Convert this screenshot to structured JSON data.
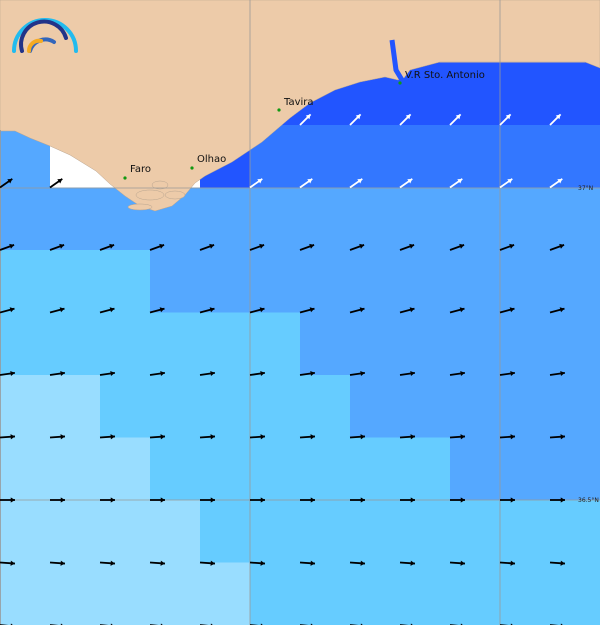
{
  "cities": [
    {
      "name": "Faro",
      "dot": [
        125,
        178
      ],
      "label": [
        130,
        172
      ]
    },
    {
      "name": "Olhao",
      "dot": [
        192,
        168
      ],
      "label": [
        197,
        162
      ]
    },
    {
      "name": "Tavira",
      "dot": [
        279,
        110
      ],
      "label": [
        284,
        105
      ]
    },
    {
      "name": "V.R Sto. Antonio",
      "dot": [
        400,
        83
      ],
      "label": [
        405,
        78
      ]
    }
  ],
  "latitude_labels": [
    "37°N",
    "36.5°N"
  ],
  "colors": {
    "land": "#edcba9",
    "coast_gap": "#ffffff",
    "levels": [
      "#2255ff",
      "#3377ff",
      "#55a8ff",
      "#66ccff",
      "#99ddff"
    ],
    "grid": "#999999",
    "city_dot": "#119911"
  },
  "cell_levels": [
    [
      -1,
      -1,
      -1,
      -1,
      -1,
      -1,
      -1,
      -1,
      -1,
      -1,
      -1,
      -1
    ],
    [
      -1,
      -1,
      -1,
      -1,
      -1,
      0,
      0,
      0,
      0,
      0,
      0,
      0
    ],
    [
      2,
      -2,
      -2,
      -2,
      0,
      1,
      1,
      1,
      1,
      1,
      1,
      1
    ],
    [
      2,
      2,
      2,
      2,
      2,
      2,
      2,
      2,
      2,
      2,
      2,
      2
    ],
    [
      3,
      3,
      3,
      2,
      2,
      2,
      2,
      2,
      2,
      2,
      2,
      2
    ],
    [
      3,
      3,
      3,
      3,
      3,
      3,
      2,
      2,
      2,
      2,
      2,
      2
    ],
    [
      4,
      4,
      3,
      3,
      3,
      3,
      3,
      2,
      2,
      2,
      2,
      2
    ],
    [
      4,
      4,
      4,
      3,
      3,
      3,
      3,
      3,
      3,
      2,
      2,
      2
    ],
    [
      4,
      4,
      4,
      4,
      3,
      3,
      3,
      3,
      3,
      3,
      3,
      3
    ],
    [
      4,
      4,
      4,
      4,
      4,
      3,
      3,
      3,
      3,
      3,
      3,
      3
    ]
  ],
  "arrow_rows": [
    {
      "color": "white",
      "angle_deg": 45,
      "from_col": 6
    },
    {
      "color": "white",
      "angle_deg": 35,
      "from_col": 5,
      "black_cols": [
        0,
        1
      ]
    },
    {
      "color": "black",
      "angle_deg": 20,
      "from_col": 0
    },
    {
      "color": "black",
      "angle_deg": 15,
      "from_col": 0
    },
    {
      "color": "black",
      "angle_deg": 8,
      "from_col": 0
    },
    {
      "color": "black",
      "angle_deg": 4,
      "from_col": 0
    },
    {
      "color": "black",
      "angle_deg": 0,
      "from_col": 0
    },
    {
      "color": "black",
      "angle_deg": -4,
      "from_col": 0
    },
    {
      "color": "black",
      "angle_deg": -6,
      "from_col": 0
    }
  ]
}
